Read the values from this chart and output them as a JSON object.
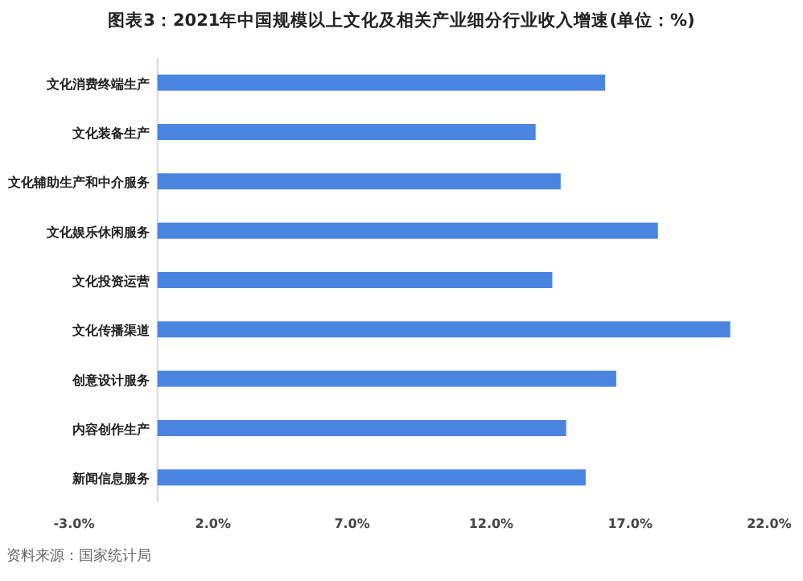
{
  "chart_data": {
    "type": "bar",
    "orientation": "horizontal",
    "title": "图表3：2021年中国规模以上文化及相关产业细分行业收入增速(单位：%)",
    "categories": [
      "文化消费终端生产",
      "文化装备生产",
      "文化辅助生产和中介服务",
      "文化娱乐休闲服务",
      "文化投资运营",
      "文化传播渠道",
      "创意设计服务",
      "内容创作生产",
      "新闻信息服务"
    ],
    "values": [
      16.1,
      13.6,
      14.5,
      18.0,
      14.2,
      20.6,
      16.5,
      14.7,
      15.4
    ],
    "color": "#4a86e0",
    "xlim": [
      -3,
      22
    ],
    "xticks": [
      {
        "value": -3,
        "label": "-3.0%"
      },
      {
        "value": 2,
        "label": "2.0%"
      },
      {
        "value": 7,
        "label": "7.0%"
      },
      {
        "value": 12,
        "label": "12.0%"
      },
      {
        "value": 17,
        "label": "17.0%"
      },
      {
        "value": 22,
        "label": "22.0%"
      }
    ],
    "annotations": [
      "资料来源：国家统计局"
    ]
  }
}
